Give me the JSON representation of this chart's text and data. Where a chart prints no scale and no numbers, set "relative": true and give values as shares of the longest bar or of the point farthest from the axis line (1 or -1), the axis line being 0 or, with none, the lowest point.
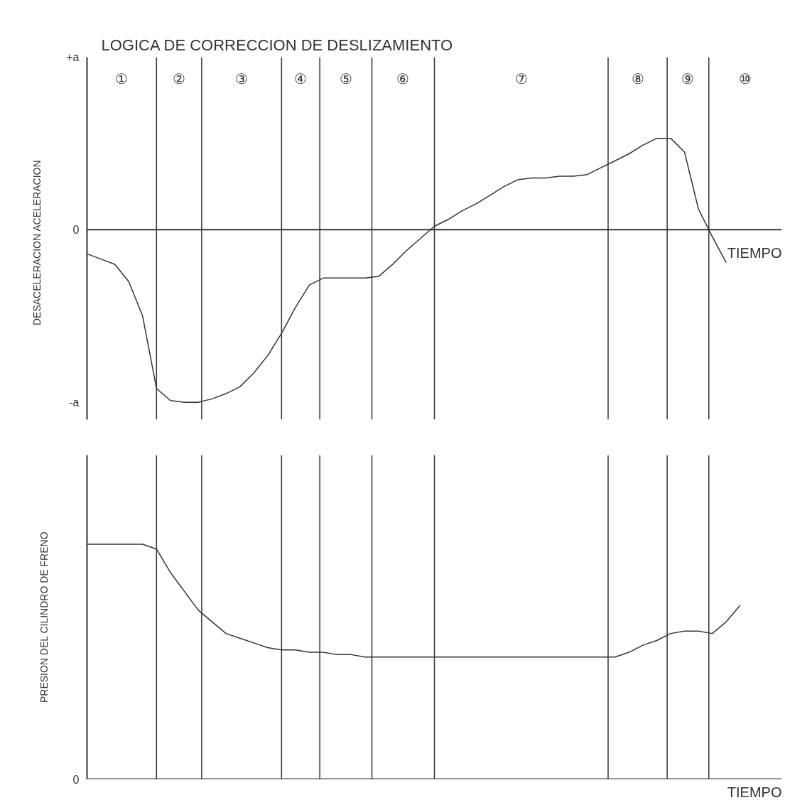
{
  "chart_data": [
    {
      "type": "line",
      "title": "LOGICA DE CORRECCION DE DESLIZAMIENTO",
      "xlabel": "TIEMPO",
      "ylabel": "DESACELERACION    ACELERACION",
      "relative": true,
      "grid": "x",
      "categories": [
        null,
        null,
        null,
        null,
        null,
        null,
        null,
        null,
        null,
        null,
        null,
        null,
        null,
        null,
        null,
        null,
        null,
        null,
        null,
        null,
        null,
        null,
        null,
        null,
        null,
        null,
        null,
        null,
        null,
        null,
        null,
        null,
        null,
        null,
        null,
        null,
        null,
        null,
        null,
        null,
        null,
        null,
        null,
        null,
        null,
        null,
        null,
        null,
        null,
        null,
        null
      ],
      "series": [
        {
          "color": "#333333",
          "values": [
            -0.14,
            -0.17,
            -0.2,
            -0.3,
            -0.5,
            -0.92,
            -0.99,
            -1.0,
            -1.0,
            -0.98,
            -0.95,
            -0.91,
            -0.83,
            -0.73,
            -0.6,
            -0.45,
            -0.32,
            -0.28,
            -0.28,
            -0.28,
            -0.28,
            -0.27,
            -0.2,
            -0.12,
            -0.05,
            0.02,
            0.06,
            0.11,
            0.15,
            0.2,
            0.25,
            0.29,
            0.3,
            0.3,
            0.31,
            0.31,
            0.32,
            0.36,
            0.4,
            0.44,
            0.49,
            0.53,
            0.53,
            0.45,
            0.12,
            -0.04,
            -0.19,
            null,
            null,
            null,
            null
          ]
        }
      ],
      "annotations": [
        "①",
        "②",
        "③",
        "④",
        "⑤",
        "⑥",
        "⑦",
        "⑧",
        "⑨",
        "⑩",
        "+a",
        "0",
        "-a"
      ]
    },
    {
      "type": "line",
      "xlabel": "TIEMPO",
      "ylabel": "PRESION DEL CILINDRO DE FRENO",
      "relative": true,
      "categories": [
        null,
        null,
        null,
        null,
        null,
        null,
        null,
        null,
        null,
        null,
        null,
        null,
        null,
        null,
        null,
        null,
        null,
        null,
        null,
        null,
        null,
        null,
        null,
        null,
        null,
        null,
        null,
        null,
        null,
        null,
        null,
        null,
        null,
        null,
        null,
        null,
        null,
        null,
        null,
        null,
        null,
        null,
        null,
        null,
        null,
        null,
        null,
        null,
        null,
        null,
        null
      ],
      "series": [
        {
          "color": "#333333",
          "values": [
            1.0,
            1.0,
            1.0,
            1.0,
            1.0,
            0.98,
            0.88,
            0.8,
            0.72,
            0.67,
            0.62,
            0.6,
            0.58,
            0.56,
            0.55,
            0.55,
            0.54,
            0.54,
            0.53,
            0.53,
            0.52,
            0.52,
            0.52,
            0.52,
            0.52,
            0.52,
            0.52,
            0.52,
            0.52,
            0.52,
            0.52,
            0.52,
            0.52,
            0.52,
            0.52,
            0.52,
            0.52,
            0.52,
            0.52,
            0.54,
            0.57,
            0.59,
            0.62,
            0.63,
            0.63,
            0.62,
            0.67,
            0.74,
            null,
            null,
            null
          ]
        }
      ],
      "grid": "x",
      "annotations": [
        "0"
      ]
    }
  ]
}
